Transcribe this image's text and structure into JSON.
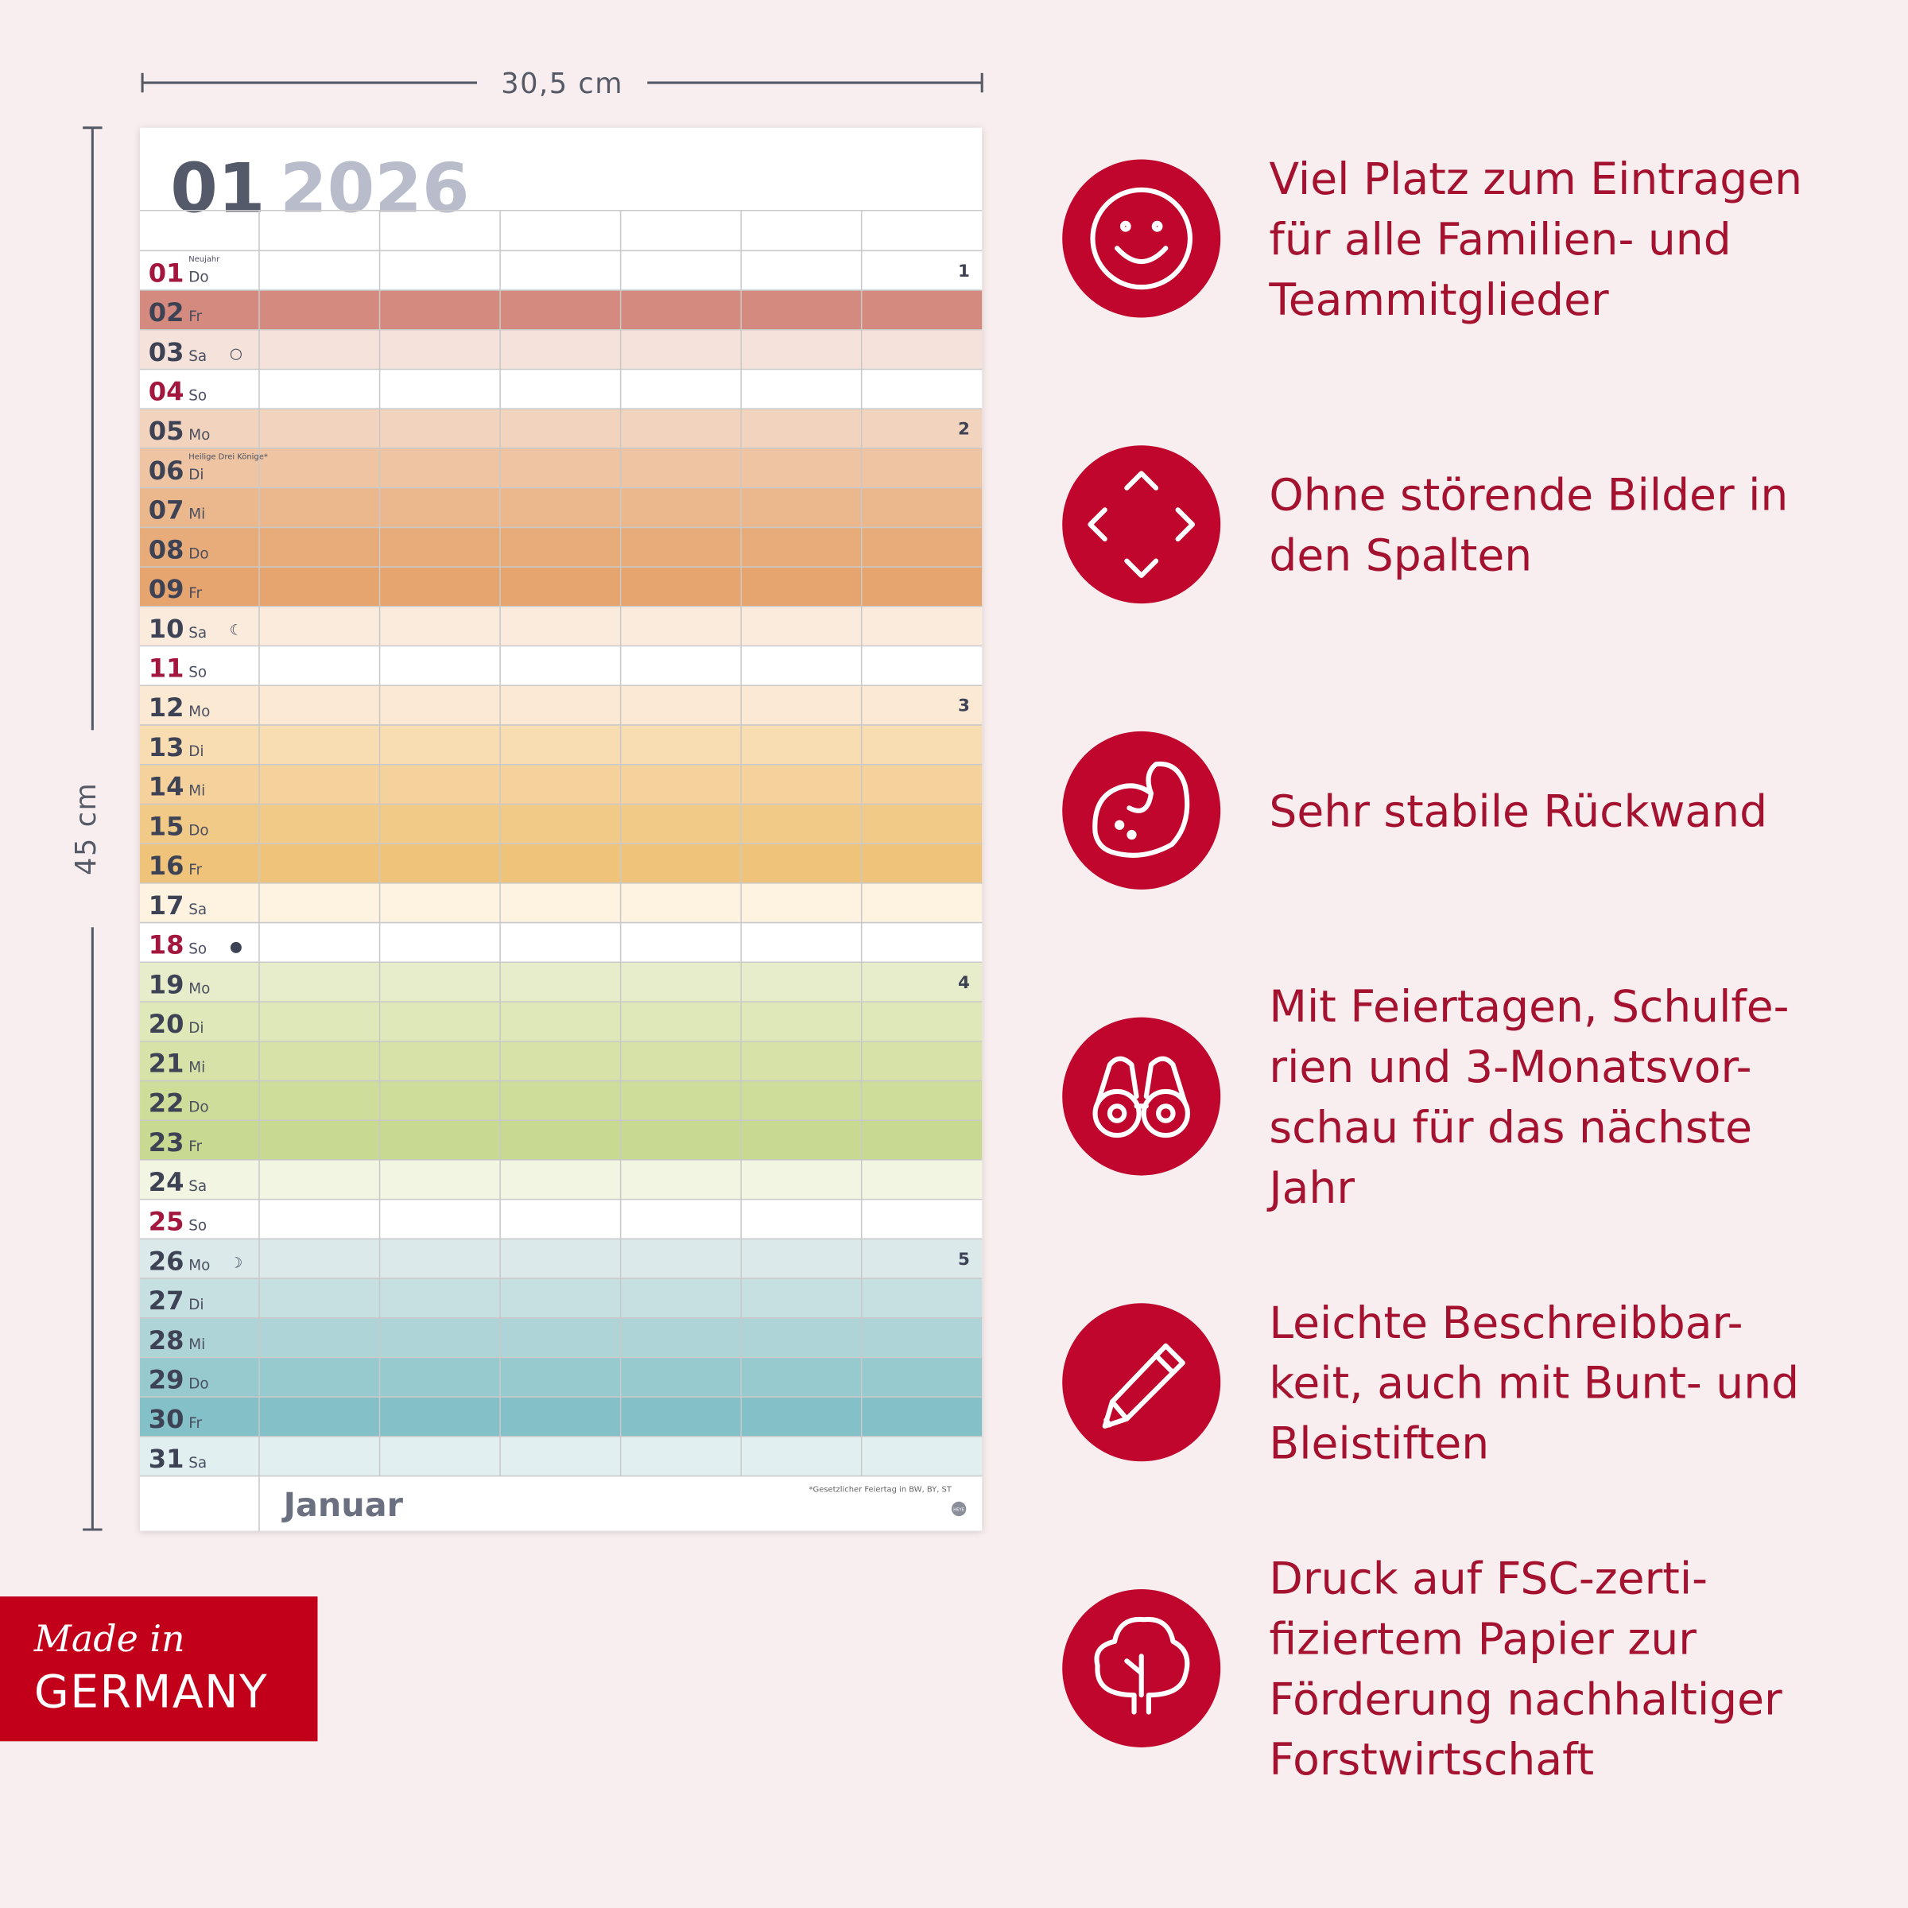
{
  "dimensions": {
    "width": "30,5 cm",
    "height": "45 cm"
  },
  "calendar": {
    "month_number": "01",
    "year": "2026",
    "month_name": "Januar",
    "footnote": "*Gesetzlicher Feiertag in BW, BY, ST",
    "logo": "HEYE",
    "days": [
      {
        "day": "01",
        "weekday": "Do",
        "note": "Neujahr",
        "week": 1,
        "highlight": true,
        "color": "#ffffff"
      },
      {
        "day": "02",
        "weekday": "Fr",
        "color": "#d48a7e"
      },
      {
        "day": "03",
        "weekday": "Sa",
        "moon": "○",
        "color": "#f5e2db"
      },
      {
        "day": "04",
        "weekday": "So",
        "highlight": true,
        "color": "#ffffff"
      },
      {
        "day": "05",
        "weekday": "Mo",
        "week": 2,
        "color": "#f2d3bd"
      },
      {
        "day": "06",
        "weekday": "Di",
        "note": "Heilige Drei Könige*",
        "color": "#eec4a2"
      },
      {
        "day": "07",
        "weekday": "Mi",
        "color": "#ebb78c"
      },
      {
        "day": "08",
        "weekday": "Do",
        "color": "#e8ac7b"
      },
      {
        "day": "09",
        "weekday": "Fr",
        "color": "#e6a46e"
      },
      {
        "day": "10",
        "weekday": "Sa",
        "moon": "☾",
        "color": "#faebdd"
      },
      {
        "day": "11",
        "weekday": "So",
        "highlight": true,
        "color": "#ffffff"
      },
      {
        "day": "12",
        "weekday": "Mo",
        "week": 3,
        "color": "#fbe9d3"
      },
      {
        "day": "13",
        "weekday": "Di",
        "color": "#f8dcb2"
      },
      {
        "day": "14",
        "weekday": "Mi",
        "color": "#f5d29b"
      },
      {
        "day": "15",
        "weekday": "Do",
        "color": "#f2ca88"
      },
      {
        "day": "16",
        "weekday": "Fr",
        "color": "#efc47a"
      },
      {
        "day": "17",
        "weekday": "Sa",
        "color": "#fdf3e0"
      },
      {
        "day": "18",
        "weekday": "So",
        "moon": "●",
        "highlight": true,
        "color": "#ffffff"
      },
      {
        "day": "19",
        "weekday": "Mo",
        "week": 4,
        "color": "#e7edcb"
      },
      {
        "day": "20",
        "weekday": "Di",
        "color": "#dfe8b8"
      },
      {
        "day": "21",
        "weekday": "Mi",
        "color": "#d7e2a8"
      },
      {
        "day": "22",
        "weekday": "Do",
        "color": "#cfdd9b"
      },
      {
        "day": "23",
        "weekday": "Fr",
        "color": "#c8d991"
      },
      {
        "day": "24",
        "weekday": "Sa",
        "color": "#f1f5e2"
      },
      {
        "day": "25",
        "weekday": "So",
        "highlight": true,
        "color": "#ffffff"
      },
      {
        "day": "26",
        "weekday": "Mo",
        "moon": "☽",
        "week": 5,
        "color": "#dce9ea"
      },
      {
        "day": "27",
        "weekday": "Di",
        "color": "#c6dfe1"
      },
      {
        "day": "28",
        "weekday": "Mi",
        "color": "#aed4d7"
      },
      {
        "day": "29",
        "weekday": "Do",
        "color": "#97cacf"
      },
      {
        "day": "30",
        "weekday": "Fr",
        "color": "#84c0c7"
      },
      {
        "day": "31",
        "weekday": "Sa",
        "color": "#e2eff0"
      }
    ]
  },
  "features": [
    {
      "icon": "smile",
      "lines": [
        "Viel Platz zum Eintragen",
        "für alle Familien- und",
        "Teammitglieder"
      ]
    },
    {
      "icon": "arrows",
      "lines": [
        "Ohne störende Bilder in",
        "den Spalten"
      ]
    },
    {
      "icon": "arm",
      "lines": [
        "Sehr stabile Rückwand"
      ]
    },
    {
      "icon": "binoculars",
      "lines": [
        "Mit Feiertagen, Schulfe-",
        "rien und 3-Monatsvor-",
        "schau für das nächste",
        "Jahr"
      ]
    },
    {
      "icon": "pencil",
      "lines": [
        "Leichte Beschreibbar-",
        "keit, auch mit Bunt- und",
        "Bleistiften"
      ]
    },
    {
      "icon": "tree",
      "lines": [
        "Druck auf FSC-zerti-",
        "fiziertem Papier zur",
        "Förderung nachhaltiger",
        "Forstwirtschaft"
      ]
    }
  ],
  "badge": {
    "made_in": "Made in",
    "country": "GERMANY"
  }
}
